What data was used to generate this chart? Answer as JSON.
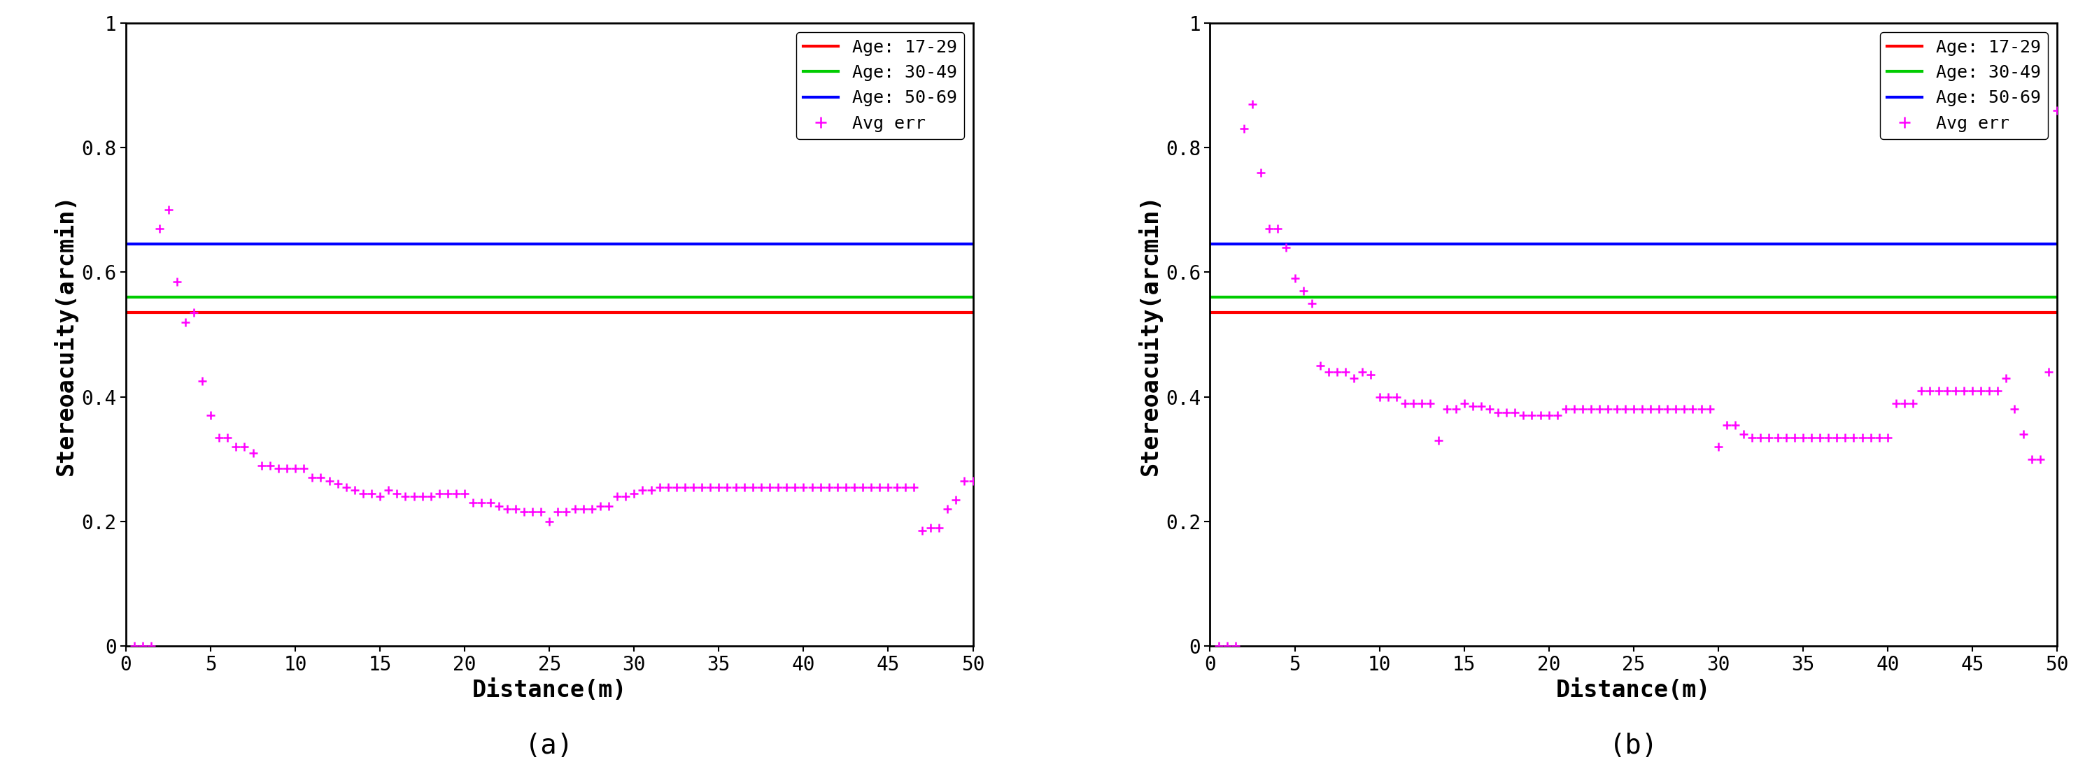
{
  "subplot_a_label": "(a)",
  "subplot_b_label": "(b)",
  "xlabel": "Distance(m)",
  "ylabel": "Stereoacuity(arcmin)",
  "xlim": [
    0,
    50
  ],
  "ylim": [
    0,
    1
  ],
  "yticks": [
    0,
    0.2,
    0.4,
    0.6,
    0.8,
    1.0
  ],
  "xticks": [
    0,
    5,
    10,
    15,
    20,
    25,
    30,
    35,
    40,
    45,
    50
  ],
  "hline_17_29": 0.535,
  "hline_30_49": 0.56,
  "hline_50_69": 0.645,
  "hline_17_29_color": "#ff0000",
  "hline_30_49_color": "#00cc00",
  "hline_50_69_color": "#0000ff",
  "scatter_color": "#ff00ff",
  "scatter_marker": "+",
  "scatter_markersize": 9,
  "scatter_linewidths": 1.8,
  "legend_labels": [
    "Age: 17-29",
    "Age: 30-49",
    "Age: 50-69",
    "Avg err"
  ],
  "background_color": "#ffffff",
  "axes_background": "#ffffff",
  "subplot_a_x": [
    0.5,
    1.0,
    1.5,
    2.0,
    2.5,
    3.0,
    3.5,
    4.0,
    4.5,
    5.0,
    5.5,
    6.0,
    6.5,
    7.0,
    7.5,
    8.0,
    8.5,
    9.0,
    9.5,
    10.0,
    10.5,
    11.0,
    11.5,
    12.0,
    12.5,
    13.0,
    13.5,
    14.0,
    14.5,
    15.0,
    15.5,
    16.0,
    16.5,
    17.0,
    17.5,
    18.0,
    18.5,
    19.0,
    19.5,
    20.0,
    20.5,
    21.0,
    21.5,
    22.0,
    22.5,
    23.0,
    23.5,
    24.0,
    24.5,
    25.0,
    25.5,
    26.0,
    26.5,
    27.0,
    27.5,
    28.0,
    28.5,
    29.0,
    29.5,
    30.0,
    30.5,
    31.0,
    31.5,
    32.0,
    32.5,
    33.0,
    33.5,
    34.0,
    34.5,
    35.0,
    35.5,
    36.0,
    36.5,
    37.0,
    37.5,
    38.0,
    38.5,
    39.0,
    39.5,
    40.0,
    40.5,
    41.0,
    41.5,
    42.0,
    42.5,
    43.0,
    43.5,
    44.0,
    44.5,
    45.0,
    45.5,
    46.0,
    46.5,
    47.0,
    47.5,
    48.0,
    48.5,
    49.0,
    49.5,
    50.0
  ],
  "subplot_a_y": [
    0.0,
    0.0,
    0.0,
    0.67,
    0.7,
    0.585,
    0.52,
    0.535,
    0.425,
    0.37,
    0.335,
    0.335,
    0.32,
    0.32,
    0.31,
    0.29,
    0.29,
    0.285,
    0.285,
    0.285,
    0.285,
    0.27,
    0.27,
    0.265,
    0.26,
    0.255,
    0.25,
    0.245,
    0.245,
    0.24,
    0.25,
    0.245,
    0.24,
    0.24,
    0.24,
    0.24,
    0.245,
    0.245,
    0.245,
    0.245,
    0.23,
    0.23,
    0.23,
    0.225,
    0.22,
    0.22,
    0.215,
    0.215,
    0.215,
    0.2,
    0.215,
    0.215,
    0.22,
    0.22,
    0.22,
    0.225,
    0.225,
    0.24,
    0.24,
    0.245,
    0.25,
    0.25,
    0.255,
    0.255,
    0.255,
    0.255,
    0.255,
    0.255,
    0.255,
    0.255,
    0.255,
    0.255,
    0.255,
    0.255,
    0.255,
    0.255,
    0.255,
    0.255,
    0.255,
    0.255,
    0.255,
    0.255,
    0.255,
    0.255,
    0.255,
    0.255,
    0.255,
    0.255,
    0.255,
    0.255,
    0.255,
    0.255,
    0.255,
    0.185,
    0.19,
    0.19,
    0.22,
    0.235,
    0.265,
    0.265
  ],
  "subplot_b_x": [
    0.5,
    1.0,
    1.5,
    2.0,
    2.5,
    3.0,
    3.5,
    4.0,
    4.5,
    5.0,
    5.5,
    6.0,
    6.5,
    7.0,
    7.5,
    8.0,
    8.5,
    9.0,
    9.5,
    10.0,
    10.5,
    11.0,
    11.5,
    12.0,
    12.5,
    13.0,
    13.5,
    14.0,
    14.5,
    15.0,
    15.5,
    16.0,
    16.5,
    17.0,
    17.5,
    18.0,
    18.5,
    19.0,
    19.5,
    20.0,
    20.5,
    21.0,
    21.5,
    22.0,
    22.5,
    23.0,
    23.5,
    24.0,
    24.5,
    25.0,
    25.5,
    26.0,
    26.5,
    27.0,
    27.5,
    28.0,
    28.5,
    29.0,
    29.5,
    30.0,
    30.5,
    31.0,
    31.5,
    32.0,
    32.5,
    33.0,
    33.5,
    34.0,
    34.5,
    35.0,
    35.5,
    36.0,
    36.5,
    37.0,
    37.5,
    38.0,
    38.5,
    39.0,
    39.5,
    40.0,
    40.5,
    41.0,
    41.5,
    42.0,
    42.5,
    43.0,
    43.5,
    44.0,
    44.5,
    45.0,
    45.5,
    46.0,
    46.5,
    47.0,
    47.5,
    48.0,
    48.5,
    49.0,
    49.5,
    50.0
  ],
  "subplot_b_y": [
    0.0,
    0.0,
    0.0,
    0.83,
    0.87,
    0.76,
    0.67,
    0.67,
    0.64,
    0.59,
    0.57,
    0.55,
    0.45,
    0.44,
    0.44,
    0.44,
    0.43,
    0.44,
    0.435,
    0.4,
    0.4,
    0.4,
    0.39,
    0.39,
    0.39,
    0.39,
    0.33,
    0.38,
    0.38,
    0.39,
    0.385,
    0.385,
    0.38,
    0.375,
    0.375,
    0.375,
    0.37,
    0.37,
    0.37,
    0.37,
    0.37,
    0.38,
    0.38,
    0.38,
    0.38,
    0.38,
    0.38,
    0.38,
    0.38,
    0.38,
    0.38,
    0.38,
    0.38,
    0.38,
    0.38,
    0.38,
    0.38,
    0.38,
    0.38,
    0.32,
    0.355,
    0.355,
    0.34,
    0.335,
    0.335,
    0.335,
    0.335,
    0.335,
    0.335,
    0.335,
    0.335,
    0.335,
    0.335,
    0.335,
    0.335,
    0.335,
    0.335,
    0.335,
    0.335,
    0.335,
    0.39,
    0.39,
    0.39,
    0.41,
    0.41,
    0.41,
    0.41,
    0.41,
    0.41,
    0.41,
    0.41,
    0.41,
    0.41,
    0.43,
    0.38,
    0.34,
    0.3,
    0.3,
    0.44,
    0.86
  ],
  "font_family": "monospace",
  "tick_fontsize": 20,
  "label_fontsize": 24,
  "legend_fontsize": 18,
  "caption_fontsize": 28,
  "hline_linewidth": 3.0,
  "axes_linewidth": 2.0
}
